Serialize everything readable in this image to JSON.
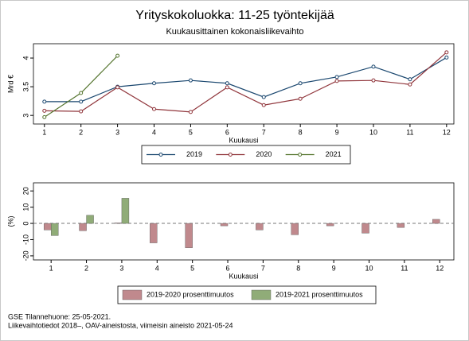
{
  "chart_data": [
    {
      "type": "line",
      "title": "Yrityskokoluokka: 11-25 työntekijää",
      "subtitle": "Kuukausittainen kokonaisliikevaihto",
      "x_label": "Kuukausi",
      "y_label": "Mrd €",
      "x": [
        1,
        2,
        3,
        4,
        5,
        6,
        7,
        8,
        9,
        10,
        11,
        12
      ],
      "xlim": [
        0.7,
        12.2
      ],
      "xticks": [
        1,
        2,
        3,
        4,
        5,
        6,
        7,
        8,
        9,
        10,
        11,
        12
      ],
      "ylim": [
        2.85,
        4.25
      ],
      "yticks": [
        3,
        3.5,
        4
      ],
      "grid": false,
      "legend": "bottom",
      "series": [
        {
          "name": "2019",
          "color": "#1a476f",
          "values": [
            3.24,
            3.24,
            3.5,
            3.56,
            3.61,
            3.56,
            3.32,
            3.56,
            3.67,
            3.85,
            3.63,
            4.01
          ]
        },
        {
          "name": "2020",
          "color": "#90353b",
          "values": [
            3.08,
            3.07,
            3.49,
            3.11,
            3.06,
            3.49,
            3.18,
            3.29,
            3.6,
            3.61,
            3.54,
            4.1
          ]
        },
        {
          "name": "2021",
          "color": "#55752f",
          "values": [
            2.97,
            3.39,
            4.04,
            null,
            null,
            null,
            null,
            null,
            null,
            null,
            null,
            null
          ]
        }
      ]
    },
    {
      "type": "bar",
      "x_label": "Kuukausi",
      "y_label": "(%)",
      "x": [
        1,
        2,
        3,
        4,
        5,
        6,
        7,
        8,
        9,
        10,
        11,
        12
      ],
      "xlim": [
        0.5,
        12.4
      ],
      "xticks": [
        1,
        2,
        3,
        4,
        5,
        6,
        7,
        8,
        9,
        10,
        11,
        12
      ],
      "ylim": [
        -22.5,
        25
      ],
      "yticks": [
        -20,
        -10,
        0,
        10,
        20
      ],
      "reference_line": 0,
      "legend": "bottom",
      "series": [
        {
          "name": "2019-2020 prosenttimuutos",
          "color": "#c0898d",
          "values": [
            -4,
            -4.5,
            0.3,
            -12,
            -15,
            -1.5,
            -4,
            -7,
            -1.5,
            -6,
            -2.5,
            2.5
          ]
        },
        {
          "name": "2019-2021 prosenttimuutos",
          "color": "#90ac78",
          "values": [
            -7.5,
            5,
            15.5,
            null,
            null,
            null,
            null,
            null,
            null,
            null,
            null,
            null
          ]
        }
      ]
    }
  ],
  "footer": [
    "GSE Tilannehuone: 25-05-2021.",
    "Liikevaihtotiedot 2018–, OAV-aineistosta, viimeisin aineisto 2021-05-24"
  ]
}
